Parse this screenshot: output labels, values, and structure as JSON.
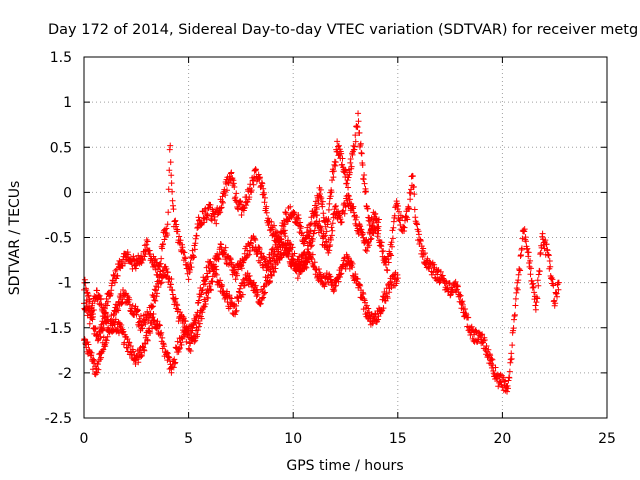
{
  "chart_data": {
    "type": "scatter",
    "title": "Day 172 of 2014, Sidereal Day-to-day VTEC variation (SDTVAR) for receiver metg",
    "xlabel": "GPS time / hours",
    "ylabel": "SDTVAR / TECUs",
    "xlim": [
      0,
      25
    ],
    "ylim": [
      -2.5,
      1.5
    ],
    "x_ticks": [
      0,
      5,
      10,
      15,
      20,
      25
    ],
    "x_tick_labels": [
      "0",
      "5",
      "10",
      "15",
      "20",
      "25"
    ],
    "y_ticks": [
      -2.5,
      -2,
      -1.5,
      -1,
      -0.5,
      0,
      0.5,
      1,
      1.5
    ],
    "y_tick_labels": [
      "-2.5",
      "-2",
      "-1.5",
      "-1",
      "-0.5",
      "0",
      "0.5",
      "1",
      "1.5"
    ],
    "grid": true,
    "marker": "+",
    "series": [
      {
        "name": "SDTVAR",
        "color": "#ff0000",
        "tracks": [
          {
            "x": [
              0.0,
              0.3,
              0.6,
              0.9,
              1.1,
              1.3,
              1.5,
              1.8,
              2.0,
              2.2,
              2.5,
              2.8,
              3.0,
              3.3,
              3.6,
              3.8,
              4.0,
              4.1,
              4.3,
              4.5,
              4.8,
              5.0,
              5.3,
              5.5,
              5.8,
              6.0,
              6.3,
              6.6,
              6.9,
              7.0,
              7.3,
              7.6,
              7.9,
              8.2,
              8.5,
              8.8,
              9.0,
              9.3,
              9.6,
              9.9,
              10.2,
              10.5,
              10.8,
              11.0,
              11.3,
              11.6,
              11.9,
              12.1,
              12.4,
              12.6,
              12.9,
              13.1,
              13.3,
              13.5,
              13.7,
              13.9,
              14.1,
              14.3,
              14.5,
              14.7,
              14.9,
              15.1,
              15.3,
              15.5,
              15.7,
              15.9,
              16.1,
              16.3,
              16.5,
              16.8,
              17.1,
              17.4,
              17.7,
              18.0,
              18.3,
              18.6,
              18.9,
              19.2,
              19.5,
              19.8,
              20.0,
              20.2,
              20.4,
              20.6,
              20.8,
              21.0,
              21.3,
              21.6,
              21.9,
              22.2,
              22.5,
              22.7
            ],
            "y": [
              -1.0,
              -1.3,
              -1.6,
              -1.5,
              -1.2,
              -1.1,
              -0.9,
              -0.8,
              -0.7,
              -0.75,
              -0.8,
              -0.7,
              -0.6,
              -0.75,
              -0.9,
              -0.5,
              -0.4,
              0.55,
              -0.3,
              -0.5,
              -0.7,
              -0.9,
              -0.6,
              -0.3,
              -0.25,
              -0.2,
              -0.3,
              -0.1,
              0.15,
              0.2,
              -0.1,
              -0.2,
              0.0,
              0.2,
              0.1,
              -0.3,
              -0.4,
              -0.55,
              -0.3,
              -0.2,
              -0.3,
              -0.5,
              -0.4,
              -0.2,
              0.0,
              -0.4,
              0.2,
              0.5,
              0.3,
              0.1,
              0.5,
              0.8,
              0.3,
              -0.1,
              -0.35,
              -0.25,
              -0.5,
              -0.7,
              -0.8,
              -0.6,
              -0.1,
              -0.3,
              -0.4,
              -0.2,
              0.2,
              -0.4,
              -0.6,
              -0.75,
              -0.8,
              -0.9,
              -0.95,
              -1.1,
              -1.0,
              -1.2,
              -1.4,
              -1.6,
              -1.6,
              -1.7,
              -1.9,
              -2.1,
              -2.1,
              -2.2,
              -1.9,
              -1.3,
              -0.9,
              -0.4,
              -0.8,
              -1.3,
              -0.5,
              -0.7,
              -1.2,
              -1.0
            ]
          },
          {
            "x": [
              0.0,
              0.3,
              0.6,
              0.9,
              1.2,
              1.5,
              1.8,
              2.1,
              2.4,
              2.7,
              3.0,
              3.3,
              3.6,
              3.9,
              4.2,
              4.5,
              4.8,
              5.1,
              5.4,
              5.7,
              6.0,
              6.3,
              6.6,
              6.9,
              7.2,
              7.5,
              7.8,
              8.1,
              8.4,
              8.7,
              9.0,
              9.3,
              9.6,
              9.9,
              10.2,
              10.5,
              10.8,
              11.1,
              11.4,
              11.7,
              12.0,
              12.3,
              12.6,
              12.9,
              13.2,
              13.5,
              13.8,
              14.1,
              14.4,
              14.7,
              15.0
            ],
            "y": [
              -1.2,
              -1.4,
              -1.1,
              -1.3,
              -1.5,
              -1.3,
              -1.15,
              -1.2,
              -1.3,
              -1.45,
              -1.4,
              -1.2,
              -1.0,
              -0.85,
              -1.05,
              -1.35,
              -1.45,
              -1.55,
              -1.3,
              -1.0,
              -0.8,
              -0.9,
              -1.05,
              -1.2,
              -1.3,
              -1.1,
              -0.95,
              -1.05,
              -1.2,
              -1.0,
              -0.85,
              -0.7,
              -0.6,
              -0.75,
              -0.9,
              -0.8,
              -0.7,
              -0.85,
              -1.0,
              -0.95,
              -1.05,
              -0.85,
              -0.75,
              -0.9,
              -1.1,
              -1.3,
              -1.45,
              -1.35,
              -1.15,
              -1.0,
              -0.95
            ]
          },
          {
            "x": [
              0.0,
              0.3,
              0.6,
              0.9,
              1.2,
              1.5,
              1.8,
              2.1,
              2.4,
              2.7,
              3.0,
              3.3,
              3.6,
              3.9,
              4.2,
              4.5,
              4.8,
              5.1,
              5.4,
              5.7,
              6.0,
              6.3,
              6.6,
              6.9,
              7.2,
              7.5,
              7.8,
              8.1,
              8.4,
              8.7,
              9.0,
              9.3,
              9.6,
              9.9,
              10.2,
              10.5,
              10.8,
              11.1,
              11.4,
              11.7,
              12.0,
              12.3,
              12.6,
              12.9,
              13.2,
              13.5,
              13.8,
              14.1
            ],
            "y": [
              -1.6,
              -1.8,
              -2.0,
              -1.7,
              -1.55,
              -1.45,
              -1.55,
              -1.7,
              -1.85,
              -1.8,
              -1.6,
              -1.4,
              -1.5,
              -1.8,
              -1.95,
              -1.7,
              -1.55,
              -1.7,
              -1.55,
              -1.25,
              -1.1,
              -0.75,
              -0.6,
              -0.75,
              -0.9,
              -0.8,
              -0.65,
              -0.55,
              -0.7,
              -0.8,
              -0.7,
              -0.55,
              -0.5,
              -0.65,
              -0.8,
              -0.75,
              -0.6,
              -0.3,
              -0.5,
              -0.6,
              -0.2,
              -0.3,
              -0.05,
              -0.25,
              -0.45,
              -0.6,
              -0.4,
              -0.3
            ]
          }
        ]
      }
    ]
  }
}
